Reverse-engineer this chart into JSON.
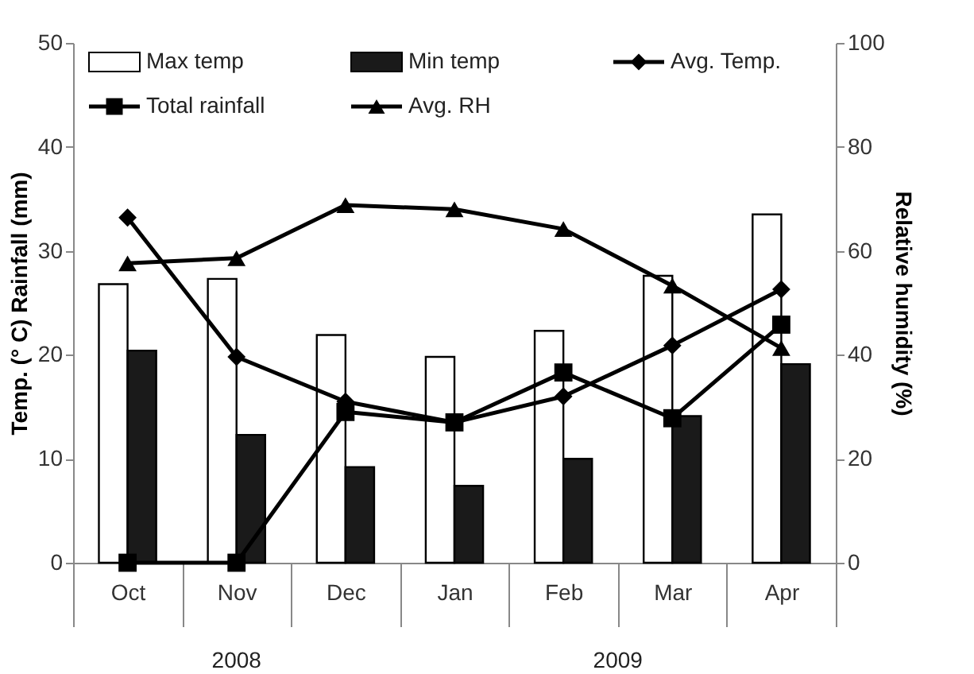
{
  "chart_data": {
    "type": "bar",
    "categories": [
      "Oct",
      "Nov",
      "Dec",
      "Jan",
      "Feb",
      "Mar",
      "Apr"
    ],
    "ylabel": "Temp. (° C)  Rainfall (mm)",
    "y2label": "Relative humidity (%)",
    "ylim": [
      0,
      50
    ],
    "yticks": [
      0,
      10,
      20,
      30,
      40,
      50
    ],
    "y2lim": [
      0,
      100
    ],
    "y2ticks": [
      0,
      20,
      40,
      60,
      80,
      100
    ],
    "grid": false,
    "legend": "top",
    "annotations": [
      "2008",
      "2009"
    ],
    "series": [
      {
        "name": "Max temp",
        "color": "#ffffff",
        "values": [
          26.8,
          27.3,
          21.9,
          19.8,
          22.3,
          27.6,
          33.5
        ]
      },
      {
        "name": "Min temp",
        "color": "#1a1a1a",
        "values": [
          20.4,
          12.3,
          9.2,
          7.4,
          10.0,
          14.1,
          19.1
        ]
      },
      {
        "name": "Avg. Temp.",
        "type": "line",
        "color": "#000000",
        "marker": "diamond",
        "values": [
          33.2,
          19.8,
          15.5,
          13.5,
          16.0,
          20.9,
          26.3
        ]
      },
      {
        "name": "Total rainfall",
        "type": "line",
        "color": "#000000",
        "marker": "square",
        "values": [
          0,
          0,
          14.5,
          13.5,
          18.3,
          13.9,
          22.9
        ]
      },
      {
        "name": "Avg. RH",
        "type": "line",
        "color": "#000000",
        "marker": "triangle",
        "axis": "y2",
        "values": [
          57.6,
          58.6,
          68.8,
          68.0,
          64.2,
          53.3,
          41.3
        ]
      }
    ]
  }
}
